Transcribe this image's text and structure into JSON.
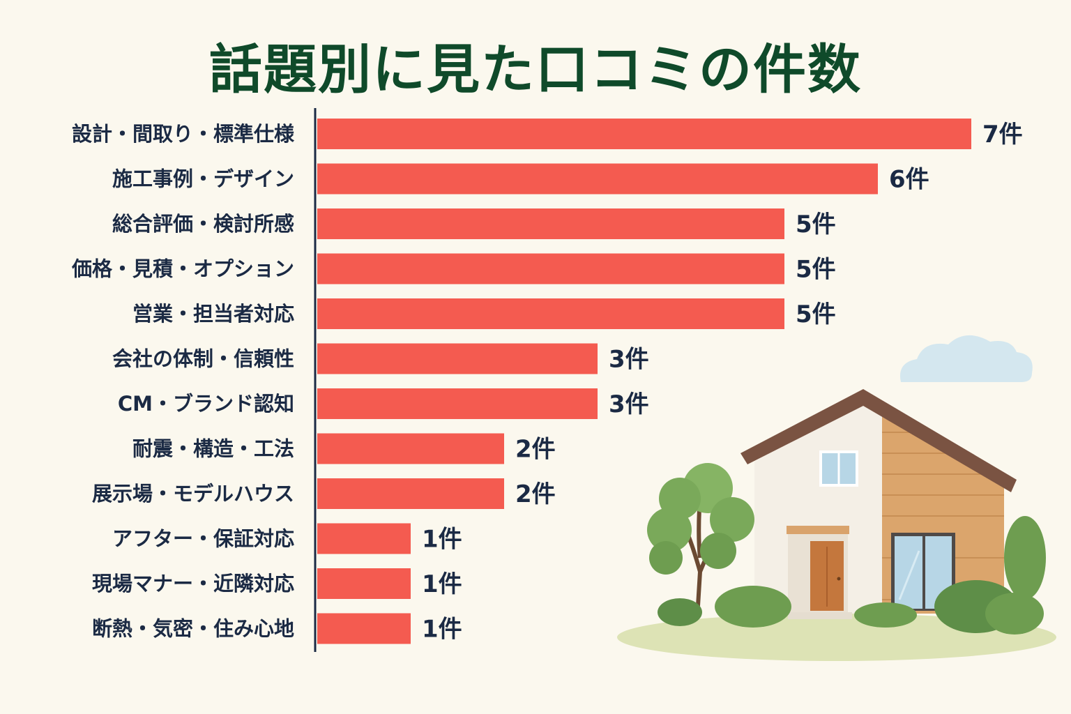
{
  "title": "話題別に見た口コミの件数",
  "colors": {
    "background": "#fbf8ee",
    "title": "#0f4a2a",
    "bar": "#f45b50",
    "axis": "#1b2a44",
    "label": "#1b2a44"
  },
  "chart_data": {
    "type": "bar",
    "orientation": "horizontal",
    "title": "話題別に見た口コミの件数",
    "categories": [
      "設計・間取り・標準仕様",
      "施工事例・デザイン",
      "総合評価・検討所感",
      "価格・見積・オプション",
      "営業・担当者対応",
      "会社の体制・信頼性",
      "CM・ブランド認知",
      "耐震・構造・工法",
      "展示場・モデルハウス",
      "アフター・保証対応",
      "現場マナー・近隣対応",
      "断熱・気密・住み心地"
    ],
    "values": [
      7,
      6,
      5,
      5,
      5,
      3,
      3,
      2,
      2,
      1,
      1,
      1
    ],
    "value_labels": [
      "7件",
      "6件",
      "5件",
      "5件",
      "5件",
      "3件",
      "3件",
      "2件",
      "2件",
      "1件",
      "1件",
      "1件"
    ],
    "unit": "件",
    "xlim": [
      0,
      7
    ],
    "grid": false,
    "legend": "none"
  },
  "illustration": {
    "icons": [
      "house-icon",
      "tree-icon",
      "cloud-icon",
      "bush-icon"
    ]
  }
}
